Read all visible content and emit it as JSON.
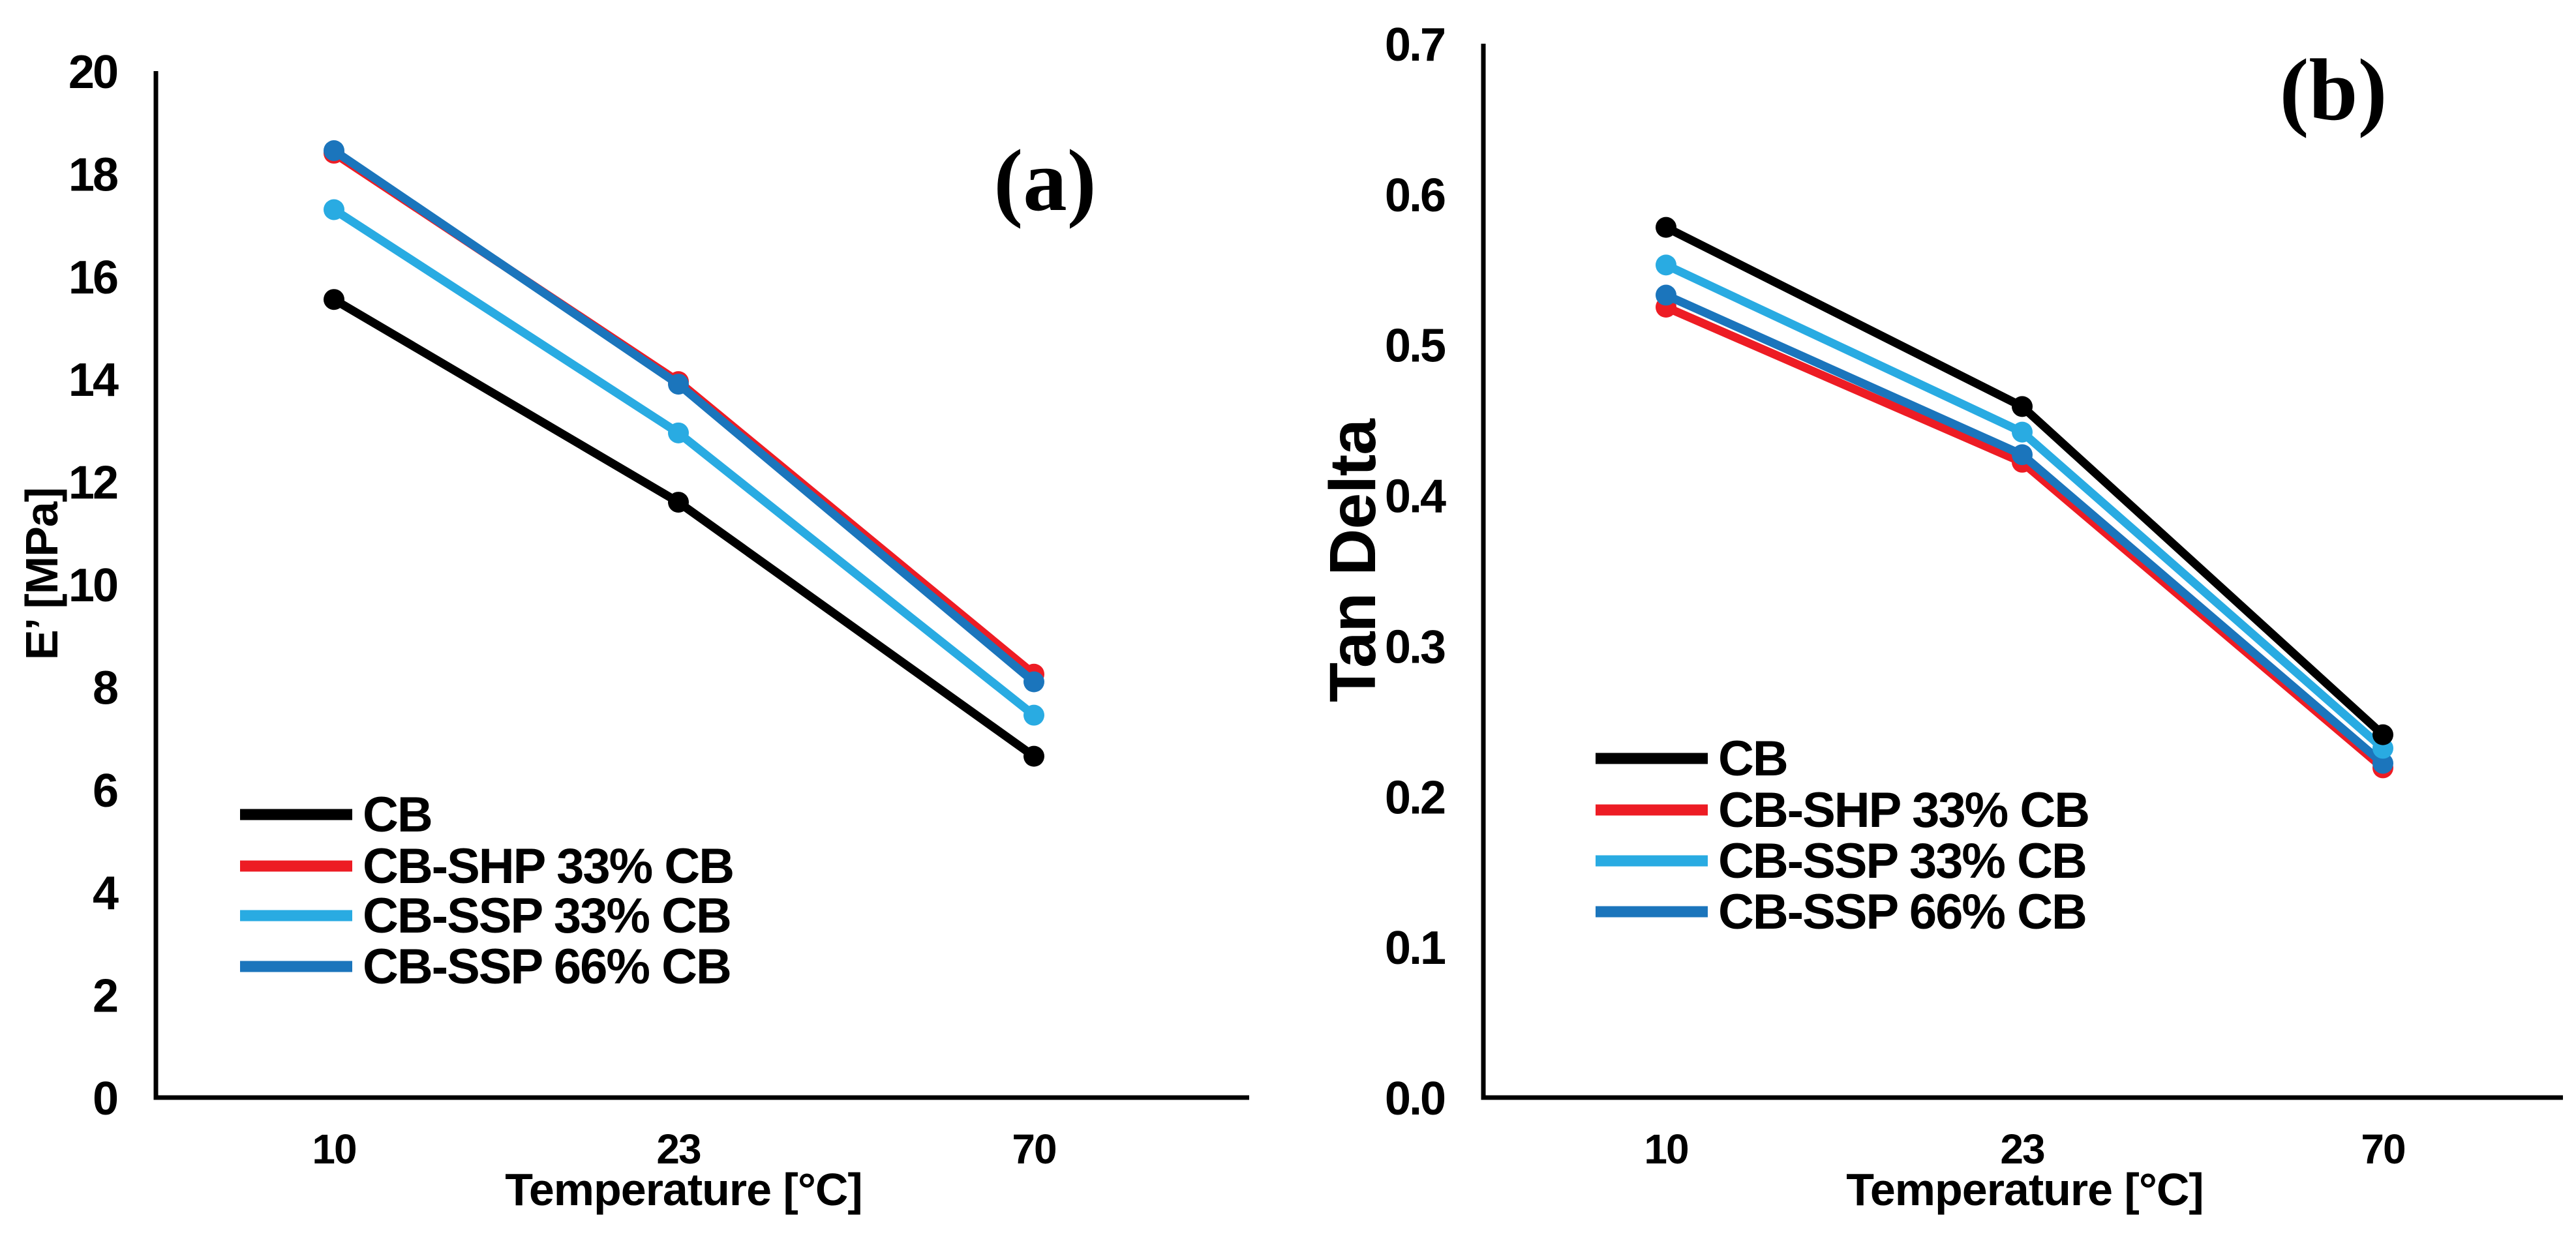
{
  "figure": {
    "background": "#ffffff",
    "panel_count": 2
  },
  "chart_data": [
    {
      "type": "line",
      "panel_label": "(a)",
      "xlabel": "Temperature [°C]",
      "ylabel": "E’ [MPa]",
      "x": [
        10,
        23,
        70
      ],
      "xtick_labels": [
        "10",
        "23",
        "70"
      ],
      "ylim": [
        0,
        20
      ],
      "ytick_labels": [
        "0",
        "2",
        "4",
        "6",
        "8",
        "10",
        "12",
        "14",
        "16",
        "18",
        "20"
      ],
      "grid": false,
      "legend_position": "lower-left-inside",
      "marker": "circle",
      "series": [
        {
          "name": "CB",
          "color": "#000000",
          "values": [
            15.55,
            11.6,
            6.65
          ]
        },
        {
          "name": "CB-SHP 33% CB",
          "color": "#ED1C24",
          "values": [
            18.4,
            13.95,
            8.25
          ]
        },
        {
          "name": "CB-SSP 33% CB",
          "color": "#29ABE2",
          "values": [
            17.3,
            12.95,
            7.45
          ]
        },
        {
          "name": "CB-SSP 66% CB",
          "color": "#1B75BC",
          "values": [
            18.45,
            13.9,
            8.1
          ]
        }
      ],
      "draw_order": [
        1,
        3,
        2,
        0
      ]
    },
    {
      "type": "line",
      "panel_label": "(b)",
      "xlabel": "Temperature [°C]",
      "ylabel": "Tan Delta",
      "x": [
        10,
        23,
        70
      ],
      "xtick_labels": [
        "10",
        "23",
        "70"
      ],
      "ylim": [
        0,
        0.7
      ],
      "ytick_labels": [
        "0.0",
        "0.1",
        "0.2",
        "0.3",
        "0.4",
        "0.5",
        "0.6",
        "0.7"
      ],
      "grid": false,
      "legend_position": "lower-left-inside",
      "marker": "circle",
      "series": [
        {
          "name": "CB",
          "color": "#000000",
          "values": [
            0.578,
            0.459,
            0.241
          ]
        },
        {
          "name": "CB-SHP 33% CB",
          "color": "#ED1C24",
          "values": [
            0.525,
            0.422,
            0.219
          ]
        },
        {
          "name": "CB-SSP 33% CB",
          "color": "#29ABE2",
          "values": [
            0.553,
            0.442,
            0.232
          ]
        },
        {
          "name": "CB-SSP 66% CB",
          "color": "#1B75BC",
          "values": [
            0.533,
            0.427,
            0.222
          ]
        }
      ],
      "draw_order": [
        1,
        3,
        2,
        0
      ]
    }
  ]
}
